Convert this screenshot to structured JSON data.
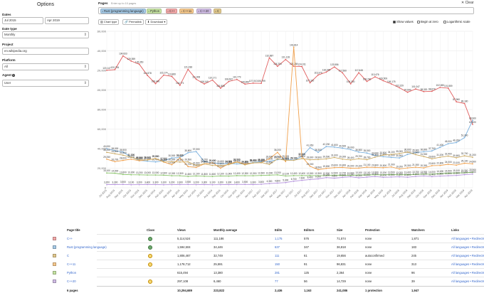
{
  "options": {
    "title": "Options",
    "dates_label": "Dates",
    "start_date": "Jul 2015",
    "end_date": "Apr 2019",
    "date_type_label": "Date type",
    "date_type_value": "Monthly",
    "project_label": "Project",
    "project_value": "en.wikipedia.org",
    "platform_label": "Platform",
    "platform_value": "All",
    "agent_label": "Agent",
    "agent_value": "User"
  },
  "pages": {
    "label": "Pages",
    "hint": "Enter up to 10 pages",
    "clear_label": "✕ Clear",
    "tags": [
      {
        "label": "Rust (programming language)",
        "color": "#a6cbe8"
      },
      {
        "label": "Python",
        "color": "#c6e4a2"
      },
      {
        "label": "C++",
        "color": "#f4a9a9"
      },
      {
        "label": "C++11",
        "color": "#f7c98c"
      },
      {
        "label": "C++20",
        "color": "#d1bde6"
      },
      {
        "label": "C",
        "color": "#e2c98d"
      }
    ]
  },
  "toolbar": {
    "chart_type": "Chart type",
    "permalink": "Permalink",
    "download": "Download ▾",
    "show_values": "Show values",
    "begin_at_zero": "Begin at zero",
    "logarithmic": "Logarithmic scale"
  },
  "chart_data": {
    "type": "line",
    "ylim": [
      0,
      160000
    ],
    "yticks": [
      "0",
      "20,000",
      "40,000",
      "60,000",
      "80,000",
      "100,000",
      "120,000",
      "140,000",
      "160,000"
    ],
    "x": [
      "Jul 2015",
      "Aug 2015",
      "Sep 2015",
      "Oct 2015",
      "Nov 2015",
      "Dec 2015",
      "Jan 2016",
      "Feb 2016",
      "Mar 2016",
      "Apr 2016",
      "May 2016",
      "Jun 2016",
      "Jul 2016",
      "Aug 2016",
      "Sep 2016",
      "Oct 2016",
      "Nov 2016",
      "Dec 2016",
      "Jan 2017",
      "Feb 2017",
      "Mar 2017",
      "Apr 2017",
      "May 2017",
      "Jun 2017",
      "Jul 2017",
      "Aug 2017",
      "Sep 2017",
      "Oct 2017",
      "Nov 2017",
      "Dec 2017",
      "Jan 2018",
      "Feb 2018",
      "Mar 2018",
      "Apr 2018",
      "May 2018",
      "Jun 2018",
      "Jul 2018",
      "Aug 2018",
      "Sep 2018",
      "Oct 2018",
      "Nov 2018",
      "Dec 2018",
      "Jan 2019",
      "Feb 2019",
      "Mar 2019",
      "Apr 2019"
    ],
    "series": [
      {
        "name": "C++",
        "color": "#e05c5c",
        "values": [
          120147,
          120794,
          134833,
          129559,
          126350,
          114878,
          106440,
          115174,
          113860,
          104771,
          121038,
          111006,
          106140,
          110171,
          101808,
          108622,
          110779,
          105959,
          107010,
          106799,
          132887,
          124254,
          131128,
          124284,
          124011,
          107320,
          115370,
          118235,
          123556,
          117560,
          106300,
          117648,
          108740,
          113476,
          109509,
          106175,
          102229,
          97690,
          101047,
          98320,
          98670,
          102650,
          101859,
          87960,
          86180,
          64820
        ]
      },
      {
        "name": "Rust (programming language)",
        "color": "#7ab0de",
        "values": [
          40000,
          38000,
          36500,
          31300,
          28000,
          27200,
          26400,
          27500,
          30500,
          31000,
          35800,
          37000,
          26700,
          25400,
          24600,
          24800,
          24400,
          24400,
          25800,
          26700,
          27100,
          28700,
          29900,
          28100,
          32000,
          41050,
          36300,
          42200,
          41600,
          40500,
          39000,
          36500,
          35500,
          33000,
          31800,
          31000,
          30500,
          34100,
          35900,
          36800,
          37700,
          41400,
          45000,
          46200,
          51300,
          68900
        ]
      },
      {
        "name": "C++11",
        "color": "#f0a04c",
        "values": [
          29250,
          26700,
          28000,
          29200,
          27600,
          28600,
          29900,
          26300,
          23600,
          30500,
          21700,
          20800,
          24400,
          25600,
          20060,
          24500,
          26500,
          24300,
          25400,
          25600,
          29600,
          36200,
          26800,
          143814,
          32100,
          22000,
          18500,
          19800,
          20600,
          20800,
          20000,
          20100,
          21100,
          20800,
          20500,
          21300,
          19200,
          20300,
          21000,
          20300,
          22600,
          22800,
          24000,
          23100,
          25100,
          24500
        ]
      },
      {
        "name": "C",
        "color": "#c9a861",
        "values": [
          36200,
          34800,
          33300,
          31200,
          28600,
          28400,
          29800,
          26700,
          26600,
          26300,
          26500,
          22900,
          24500,
          22800,
          22600,
          23600,
          26200,
          23400,
          25400,
          25800,
          23800,
          29500,
          27900,
          28100,
          29800,
          28600,
          28900,
          29500,
          31000,
          29300,
          28400,
          29700,
          28700,
          31300,
          33500,
          34100,
          35000,
          36600,
          33900,
          31900,
          29600,
          31200,
          32400,
          30600,
          32700,
          31200
        ]
      },
      {
        "name": "Python",
        "color": "#86c266",
        "values": [
          15100,
          14900,
          13600,
          13300,
          13200,
          13000,
          13000,
          12900,
          12300,
          12300,
          11600,
          12100,
          11800,
          11600,
          12100,
          11900,
          12400,
          12300,
          12300,
          12600,
          12900,
          13200,
          12100,
          12400,
          12400,
          12500,
          12300,
          12500,
          12900,
          12700,
          12600,
          13100,
          13100,
          13300,
          13200,
          13500,
          13200,
          13400,
          13700,
          13900,
          14000,
          14400,
          14900,
          15100,
          15300,
          15900
        ]
      },
      {
        "name": "C++20",
        "color": "#b593dd",
        "values": [
          3200,
          3300,
          3500,
          3100,
          3200,
          3400,
          3300,
          3100,
          3200,
          3300,
          3500,
          3200,
          3300,
          3100,
          3200,
          3300,
          3400,
          3500,
          3300,
          3600,
          4300,
          4800,
          5300,
          6700,
          7600,
          8400,
          9100,
          10400,
          9800,
          10600,
          11300,
          10200,
          10900,
          11500,
          10700,
          11000,
          11200,
          10800,
          11600,
          12100,
          11400,
          11900,
          12300,
          12600,
          13400,
          14000
        ]
      }
    ]
  },
  "table": {
    "headers": [
      "Page title",
      "Class",
      "Views",
      "Monthly average",
      "Edits",
      "Editors",
      "Size",
      "Protection",
      "Watchers",
      "Links"
    ],
    "rows": [
      {
        "title": "C++",
        "color": "#f4a9a9",
        "cls": "b",
        "views": "5,114,524",
        "avg": "111,186",
        "edits": "1,175",
        "editors": "576",
        "size": "71,574",
        "prot": "none",
        "watch": "1,871",
        "links": "All languages • Redirects"
      },
      {
        "title": "Rust (programming language)",
        "color": "#a6cbe8",
        "cls": "b",
        "views": "1,594,504",
        "avg": "34,446",
        "edits": "637",
        "editors": "347",
        "size": "36,818",
        "prot": "none",
        "watch": "183",
        "links": "All languages • Redirects"
      },
      {
        "title": "C",
        "color": "#e2c98d",
        "cls": "c",
        "views": "1,806,467",
        "avg": "32,749",
        "edits": "111",
        "editors": "61",
        "size": "19,656",
        "prot": "autoconfirmed",
        "watch": "245",
        "links": "All languages • Redirects"
      },
      {
        "title": "C++11",
        "color": "#f7c98c",
        "cls": "c",
        "views": "1,178,712",
        "avg": "25,591",
        "edits": "150",
        "editors": "91",
        "size": "96,831",
        "prot": "none",
        "watch": "313",
        "links": "All languages • Redirects"
      },
      {
        "title": "Python",
        "color": "#c6e4a2",
        "cls": "",
        "views": "615,494",
        "avg": "13,380",
        "edits": "281",
        "editors": "125",
        "size": "2,364",
        "prot": "none",
        "watch": "96",
        "links": "All languages • Redirects"
      },
      {
        "title": "C++20",
        "color": "#d1bde6",
        "cls": "c",
        "views": "297,108",
        "avg": "6,460",
        "edits": "77",
        "editors": "56",
        "size": "14,729",
        "prot": "none",
        "watch": "39",
        "links": "All languages • Redirects"
      }
    ],
    "footer": {
      "title": "6 pages",
      "views": "10,294,689",
      "avg": "223,822",
      "edits": "2,436",
      "editors": "1,163",
      "size": "241,086",
      "prot": "1 protection",
      "watch": "1,947"
    }
  }
}
